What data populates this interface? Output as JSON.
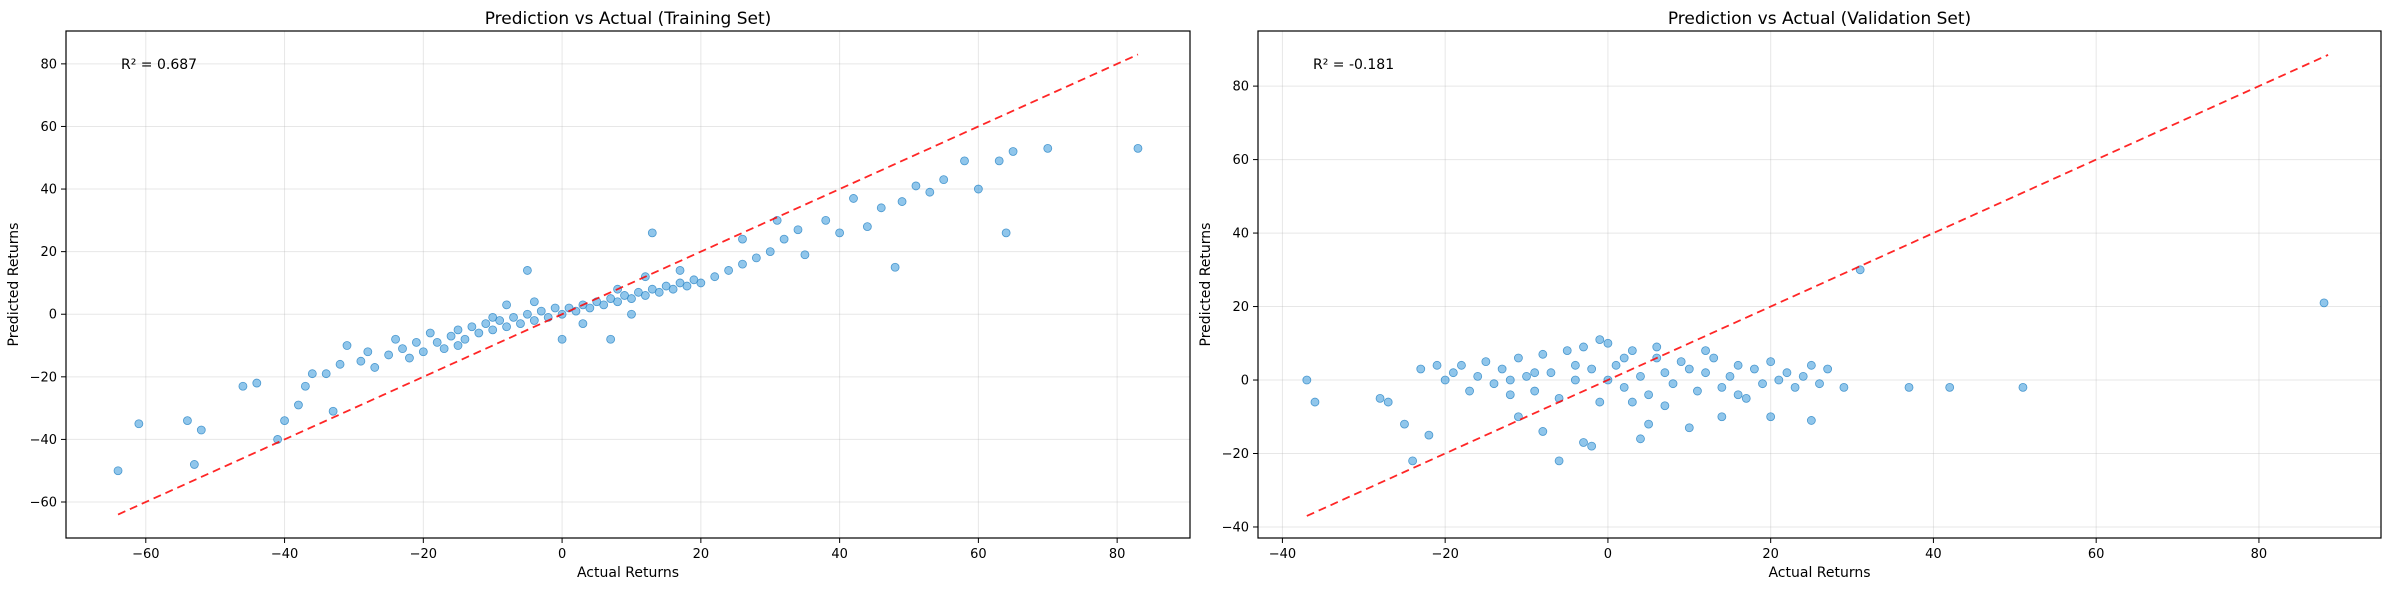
{
  "chart_data": [
    {
      "type": "scatter",
      "title": "Prediction vs Actual (Training Set)",
      "xlabel": "Actual Returns",
      "ylabel": "Predicted Returns",
      "annotation": "R² = 0.687",
      "xlim": [
        -71.5,
        90.5
      ],
      "ylim": [
        -71.5,
        90.5
      ],
      "xticks": [
        -60,
        -40,
        -20,
        0,
        20,
        40,
        60,
        80
      ],
      "yticks": [
        -60,
        -40,
        -20,
        0,
        20,
        40,
        60,
        80
      ],
      "xtick_labels": [
        "−60",
        "−40",
        "−20",
        "0",
        "20",
        "40",
        "60",
        "80"
      ],
      "ytick_labels": [
        "−60",
        "−40",
        "−20",
        "0",
        "20",
        "40",
        "60",
        "80"
      ],
      "grid": true,
      "reference_line": {
        "from": [
          -64,
          -64
        ],
        "to": [
          83,
          83
        ],
        "style": "dashed",
        "color": "#ff0000"
      },
      "point_color": "#3498db",
      "points": [
        [
          -64,
          -50
        ],
        [
          -61,
          -35
        ],
        [
          -54,
          -34
        ],
        [
          -53,
          -48
        ],
        [
          -52,
          -37
        ],
        [
          -46,
          -23
        ],
        [
          -44,
          -22
        ],
        [
          -41,
          -40
        ],
        [
          -40,
          -34
        ],
        [
          -38,
          -29
        ],
        [
          -37,
          -23
        ],
        [
          -36,
          -19
        ],
        [
          -34,
          -19
        ],
        [
          -33,
          -31
        ],
        [
          -32,
          -16
        ],
        [
          -31,
          -10
        ],
        [
          -29,
          -15
        ],
        [
          -28,
          -12
        ],
        [
          -27,
          -17
        ],
        [
          -25,
          -13
        ],
        [
          -24,
          -8
        ],
        [
          -23,
          -11
        ],
        [
          -22,
          -14
        ],
        [
          -21,
          -9
        ],
        [
          -20,
          -12
        ],
        [
          -19,
          -6
        ],
        [
          -18,
          -9
        ],
        [
          -17,
          -11
        ],
        [
          -16,
          -7
        ],
        [
          -15,
          -5
        ],
        [
          -14,
          -8
        ],
        [
          -13,
          -4
        ],
        [
          -12,
          -6
        ],
        [
          -11,
          -3
        ],
        [
          -10,
          -5
        ],
        [
          -9,
          -2
        ],
        [
          -8,
          -4
        ],
        [
          -7,
          -1
        ],
        [
          -6,
          -3
        ],
        [
          -5,
          0
        ],
        [
          -4,
          -2
        ],
        [
          -3,
          1
        ],
        [
          -2,
          -1
        ],
        [
          -1,
          2
        ],
        [
          0,
          0
        ],
        [
          1,
          2
        ],
        [
          2,
          1
        ],
        [
          3,
          3
        ],
        [
          4,
          2
        ],
        [
          5,
          4
        ],
        [
          6,
          3
        ],
        [
          7,
          5
        ],
        [
          8,
          4
        ],
        [
          9,
          6
        ],
        [
          10,
          5
        ],
        [
          11,
          7
        ],
        [
          12,
          6
        ],
        [
          13,
          8
        ],
        [
          14,
          7
        ],
        [
          15,
          9
        ],
        [
          16,
          8
        ],
        [
          17,
          10
        ],
        [
          18,
          9
        ],
        [
          19,
          11
        ],
        [
          20,
          10
        ],
        [
          22,
          12
        ],
        [
          24,
          14
        ],
        [
          26,
          16
        ],
        [
          28,
          18
        ],
        [
          30,
          20
        ],
        [
          31,
          30
        ],
        [
          32,
          24
        ],
        [
          34,
          27
        ],
        [
          35,
          19
        ],
        [
          38,
          30
        ],
        [
          40,
          26
        ],
        [
          42,
          37
        ],
        [
          44,
          28
        ],
        [
          46,
          34
        ],
        [
          48,
          15
        ],
        [
          49,
          36
        ],
        [
          51,
          41
        ],
        [
          53,
          39
        ],
        [
          55,
          43
        ],
        [
          58,
          49
        ],
        [
          60,
          40
        ],
        [
          63,
          49
        ],
        [
          64,
          26
        ],
        [
          65,
          52
        ],
        [
          70,
          53
        ],
        [
          83,
          53
        ],
        [
          -5,
          14
        ],
        [
          -4,
          4
        ],
        [
          7,
          -8
        ],
        [
          0,
          -8
        ],
        [
          -10,
          -1
        ],
        [
          3,
          -3
        ],
        [
          8,
          8
        ],
        [
          12,
          12
        ],
        [
          17,
          14
        ],
        [
          26,
          24
        ],
        [
          13,
          26
        ],
        [
          -15,
          -10
        ],
        [
          -8,
          3
        ],
        [
          10,
          0
        ]
      ]
    },
    {
      "type": "scatter",
      "title": "Prediction vs Actual (Validation Set)",
      "xlabel": "Actual Returns",
      "ylabel": "Predicted Returns",
      "annotation": "R² = -0.181",
      "xlim": [
        -43,
        95
      ],
      "ylim": [
        -43,
        95
      ],
      "xticks": [
        -40,
        -20,
        0,
        20,
        40,
        60,
        80
      ],
      "yticks": [
        -40,
        -20,
        0,
        20,
        40,
        60,
        80
      ],
      "xtick_labels": [
        "−40",
        "−20",
        "0",
        "20",
        "40",
        "60",
        "80"
      ],
      "ytick_labels": [
        "−40",
        "−20",
        "0",
        "20",
        "40",
        "60",
        "80"
      ],
      "grid": true,
      "reference_line": {
        "from": [
          -37,
          -37
        ],
        "to": [
          88.5,
          88.5
        ],
        "style": "dashed",
        "color": "#ff0000"
      },
      "point_color": "#3498db",
      "points": [
        [
          -37,
          0
        ],
        [
          -36,
          -6
        ],
        [
          -28,
          -5
        ],
        [
          -27,
          -6
        ],
        [
          -25,
          -12
        ],
        [
          -24,
          -22
        ],
        [
          -23,
          3
        ],
        [
          -22,
          -15
        ],
        [
          -21,
          4
        ],
        [
          -20,
          0
        ],
        [
          -19,
          2
        ],
        [
          -18,
          4
        ],
        [
          -17,
          -3
        ],
        [
          -16,
          1
        ],
        [
          -15,
          5
        ],
        [
          -14,
          -1
        ],
        [
          -13,
          3
        ],
        [
          -12,
          -4
        ],
        [
          -11,
          6
        ],
        [
          -10,
          1
        ],
        [
          -9,
          -3
        ],
        [
          -8,
          7
        ],
        [
          -7,
          2
        ],
        [
          -6,
          -5
        ],
        [
          -5,
          8
        ],
        [
          -4,
          0
        ],
        [
          -3,
          9
        ],
        [
          -2,
          3
        ],
        [
          -1,
          -6
        ],
        [
          0,
          10
        ],
        [
          1,
          4
        ],
        [
          2,
          -2
        ],
        [
          3,
          8
        ],
        [
          4,
          1
        ],
        [
          5,
          -4
        ],
        [
          6,
          6
        ],
        [
          7,
          2
        ],
        [
          8,
          -1
        ],
        [
          9,
          5
        ],
        [
          10,
          3
        ],
        [
          11,
          -3
        ],
        [
          12,
          2
        ],
        [
          13,
          6
        ],
        [
          14,
          -2
        ],
        [
          15,
          1
        ],
        [
          16,
          4
        ],
        [
          17,
          -5
        ],
        [
          18,
          3
        ],
        [
          19,
          -1
        ],
        [
          20,
          5
        ],
        [
          21,
          0
        ],
        [
          22,
          2
        ],
        [
          23,
          -2
        ],
        [
          24,
          1
        ],
        [
          25,
          4
        ],
        [
          26,
          -1
        ],
        [
          27,
          3
        ],
        [
          29,
          -2
        ],
        [
          -6,
          -22
        ],
        [
          -3,
          -17
        ],
        [
          -2,
          -18
        ],
        [
          -8,
          -14
        ],
        [
          -11,
          -10
        ],
        [
          5,
          -12
        ],
        [
          4,
          -16
        ],
        [
          10,
          -13
        ],
        [
          14,
          -10
        ],
        [
          20,
          -10
        ],
        [
          25,
          -11
        ],
        [
          31,
          30
        ],
        [
          37,
          -2
        ],
        [
          42,
          -2
        ],
        [
          51,
          -2
        ],
        [
          88,
          21
        ],
        [
          0,
          0
        ],
        [
          2,
          6
        ],
        [
          -4,
          4
        ],
        [
          6,
          9
        ],
        [
          -9,
          2
        ],
        [
          3,
          -6
        ],
        [
          -1,
          11
        ],
        [
          7,
          -7
        ],
        [
          -12,
          0
        ],
        [
          12,
          8
        ],
        [
          16,
          -4
        ]
      ]
    }
  ]
}
